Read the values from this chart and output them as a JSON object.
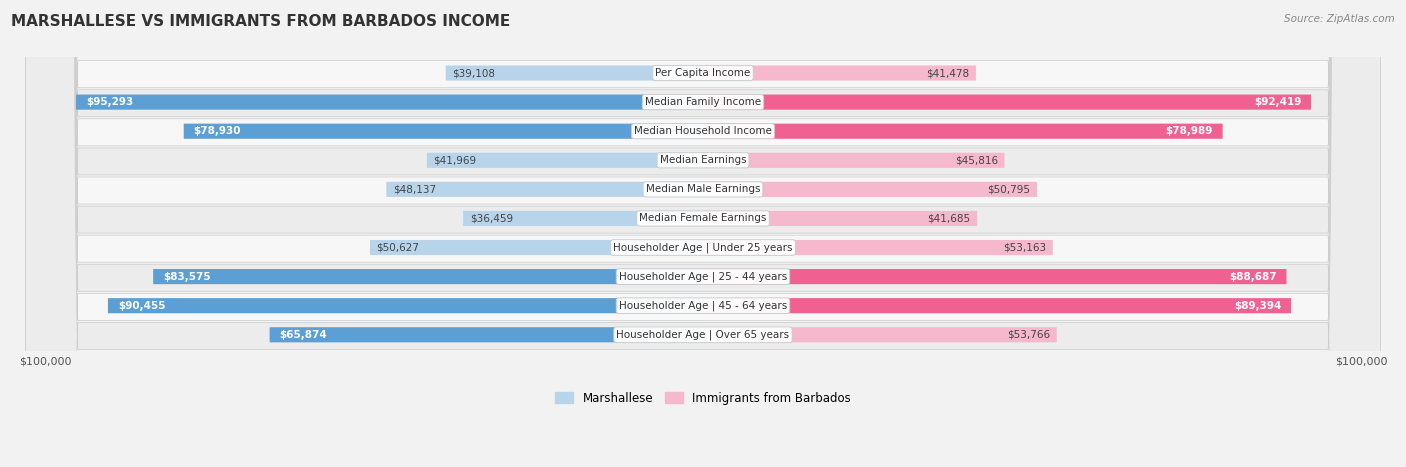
{
  "title": "MARSHALLESE VS IMMIGRANTS FROM BARBADOS INCOME",
  "source": "Source: ZipAtlas.com",
  "categories": [
    "Per Capita Income",
    "Median Family Income",
    "Median Household Income",
    "Median Earnings",
    "Median Male Earnings",
    "Median Female Earnings",
    "Householder Age | Under 25 years",
    "Householder Age | 25 - 44 years",
    "Householder Age | 45 - 64 years",
    "Householder Age | Over 65 years"
  ],
  "marshallese_values": [
    39108,
    95293,
    78930,
    41969,
    48137,
    36459,
    50627,
    83575,
    90455,
    65874
  ],
  "barbados_values": [
    41478,
    92419,
    78989,
    45816,
    50795,
    41685,
    53163,
    88687,
    89394,
    53766
  ],
  "max_val": 100000,
  "blue_light": "#b8d4ea",
  "blue_dark": "#5b9fd4",
  "pink_light": "#f5b8cc",
  "pink_dark": "#f06090",
  "label_blue": "Marshallese",
  "label_pink": "Immigrants from Barbados",
  "row_bg_odd": "#f7f7f7",
  "row_bg_even": "#ececec",
  "threshold_dark": 65000,
  "bar_height": 0.52
}
